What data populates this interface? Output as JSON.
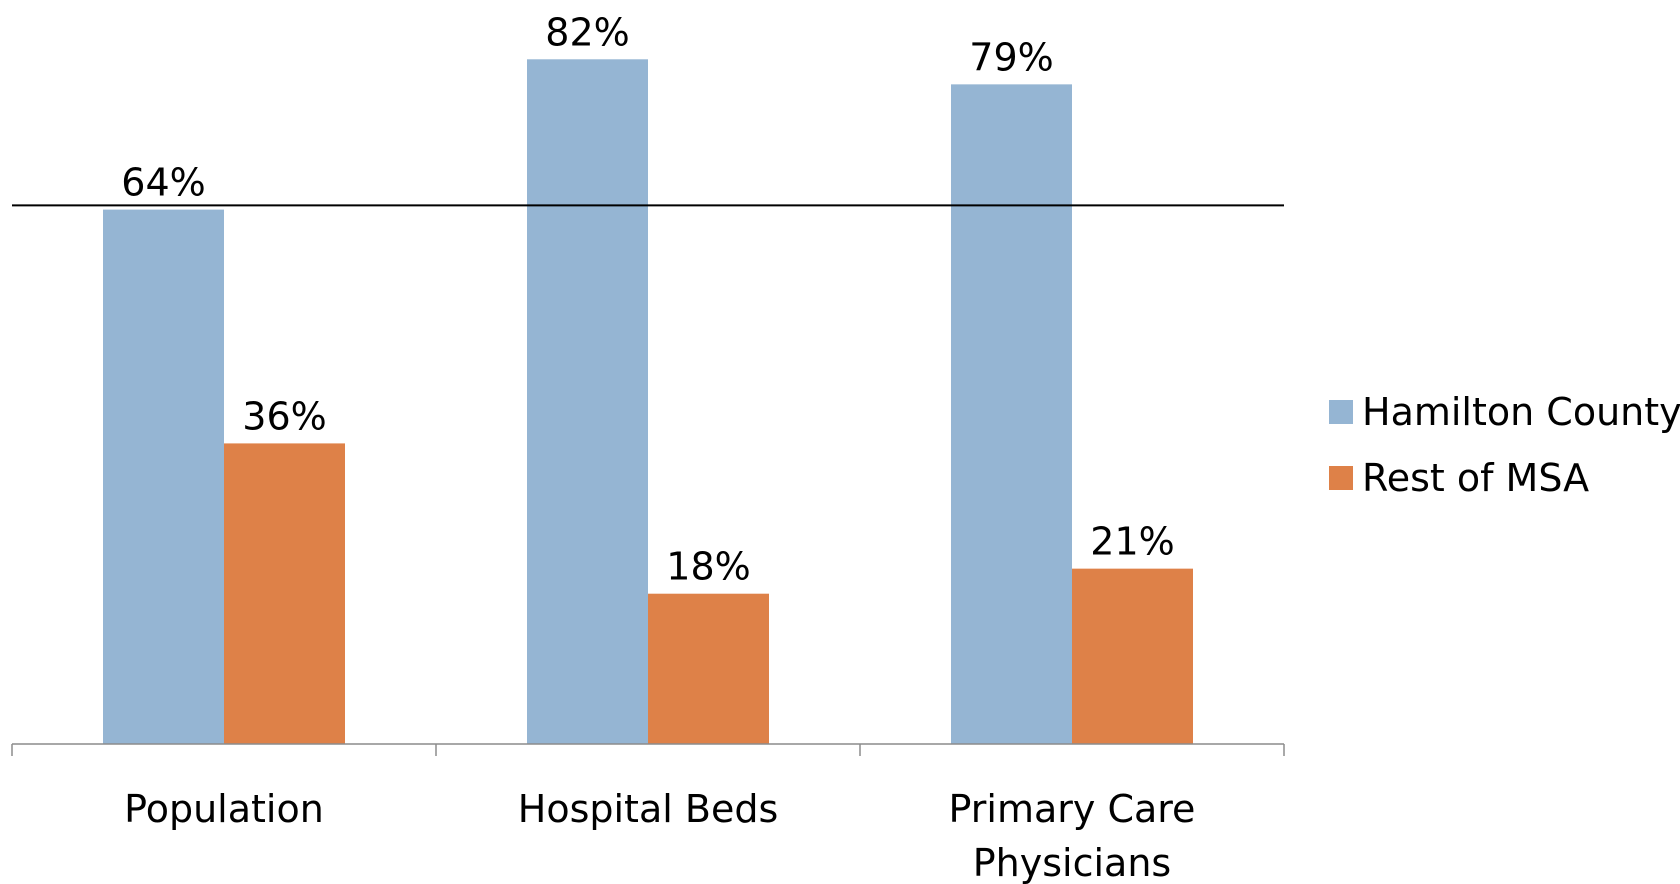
{
  "chart_data": {
    "type": "bar",
    "categories": [
      "Population",
      "Hospital Beds",
      "Primary Care Physicians"
    ],
    "category_lines": [
      [
        "Population"
      ],
      [
        "Hospital Beds"
      ],
      [
        "Primary Care",
        "Physicians"
      ]
    ],
    "series": [
      {
        "name": "Hamilton County",
        "values": [
          64,
          82,
          79
        ],
        "labels": [
          "64%",
          "82%",
          "79%"
        ],
        "color": "#95b5d3"
      },
      {
        "name": "Rest of MSA",
        "values": [
          36,
          18,
          21
        ],
        "labels": [
          "36%",
          "18%",
          "21%"
        ],
        "color": "#de8148"
      }
    ],
    "unit": "%",
    "ylim": [
      0,
      85
    ],
    "reference_line": 64.5,
    "legend_position": "right",
    "grid": false,
    "title": "",
    "xlabel": "",
    "ylabel": ""
  }
}
